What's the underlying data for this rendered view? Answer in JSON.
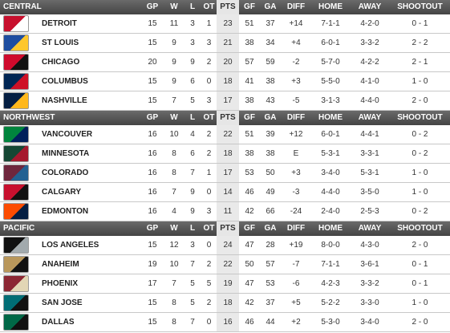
{
  "divisions": [
    {
      "name": "CENTRAL",
      "columns": [
        "GP",
        "W",
        "L",
        "OT",
        "PTS",
        "GF",
        "GA",
        "DIFF",
        "HOME",
        "AWAY",
        "SHOOTOUT"
      ],
      "teams": [
        [
          "DETROIT",
          "15",
          "11",
          "3",
          "1",
          "23",
          "51",
          "37",
          "+14",
          "7-1-1",
          "4-2-0",
          "0 - 1"
        ],
        [
          "ST LOUIS",
          "15",
          "9",
          "3",
          "3",
          "21",
          "38",
          "34",
          "+4",
          "6-0-1",
          "3-3-2",
          "2 - 2"
        ],
        [
          "CHICAGO",
          "20",
          "9",
          "9",
          "2",
          "20",
          "57",
          "59",
          "-2",
          "5-7-0",
          "4-2-2",
          "2 - 1"
        ],
        [
          "COLUMBUS",
          "15",
          "9",
          "6",
          "0",
          "18",
          "41",
          "38",
          "+3",
          "5-5-0",
          "4-1-0",
          "1 - 0"
        ],
        [
          "NASHVILLE",
          "15",
          "7",
          "5",
          "3",
          "17",
          "38",
          "43",
          "-5",
          "3-1-3",
          "4-4-0",
          "2 - 0"
        ]
      ]
    },
    {
      "name": "NORTHWEST",
      "columns": [
        "GP",
        "W",
        "L",
        "OT",
        "PTS",
        "GF",
        "GA",
        "DIFF",
        "HOME",
        "AWAY",
        "SHOOTOUT"
      ],
      "teams": [
        [
          "VANCOUVER",
          "16",
          "10",
          "4",
          "2",
          "22",
          "51",
          "39",
          "+12",
          "6-0-1",
          "4-4-1",
          "0 - 2"
        ],
        [
          "MINNESOTA",
          "16",
          "8",
          "6",
          "2",
          "18",
          "38",
          "38",
          "E",
          "5-3-1",
          "3-3-1",
          "0 - 2"
        ],
        [
          "COLORADO",
          "16",
          "8",
          "7",
          "1",
          "17",
          "53",
          "50",
          "+3",
          "3-4-0",
          "5-3-1",
          "1 - 0"
        ],
        [
          "CALGARY",
          "16",
          "7",
          "9",
          "0",
          "14",
          "46",
          "49",
          "-3",
          "4-4-0",
          "3-5-0",
          "1 - 0"
        ],
        [
          "EDMONTON",
          "16",
          "4",
          "9",
          "3",
          "11",
          "42",
          "66",
          "-24",
          "2-4-0",
          "2-5-3",
          "0 - 2"
        ]
      ]
    },
    {
      "name": "PACIFIC",
      "columns": [
        "GP",
        "W",
        "L",
        "OT",
        "PTS",
        "GF",
        "GA",
        "DIFF",
        "HOME",
        "AWAY",
        "SHOOTOUT"
      ],
      "teams": [
        [
          "LOS ANGELES",
          "15",
          "12",
          "3",
          "0",
          "24",
          "47",
          "28",
          "+19",
          "8-0-0",
          "4-3-0",
          "2 - 0"
        ],
        [
          "ANAHEIM",
          "19",
          "10",
          "7",
          "2",
          "22",
          "50",
          "57",
          "-7",
          "7-1-1",
          "3-6-1",
          "0 - 1"
        ],
        [
          "PHOENIX",
          "17",
          "7",
          "5",
          "5",
          "19",
          "47",
          "53",
          "-6",
          "4-2-3",
          "3-3-2",
          "0 - 1"
        ],
        [
          "SAN JOSE",
          "15",
          "8",
          "5",
          "2",
          "18",
          "42",
          "37",
          "+5",
          "5-2-2",
          "3-3-0",
          "1 - 0"
        ],
        [
          "DALLAS",
          "15",
          "8",
          "7",
          "0",
          "16",
          "46",
          "44",
          "+2",
          "5-3-0",
          "3-4-0",
          "2 - 0"
        ]
      ]
    }
  ]
}
